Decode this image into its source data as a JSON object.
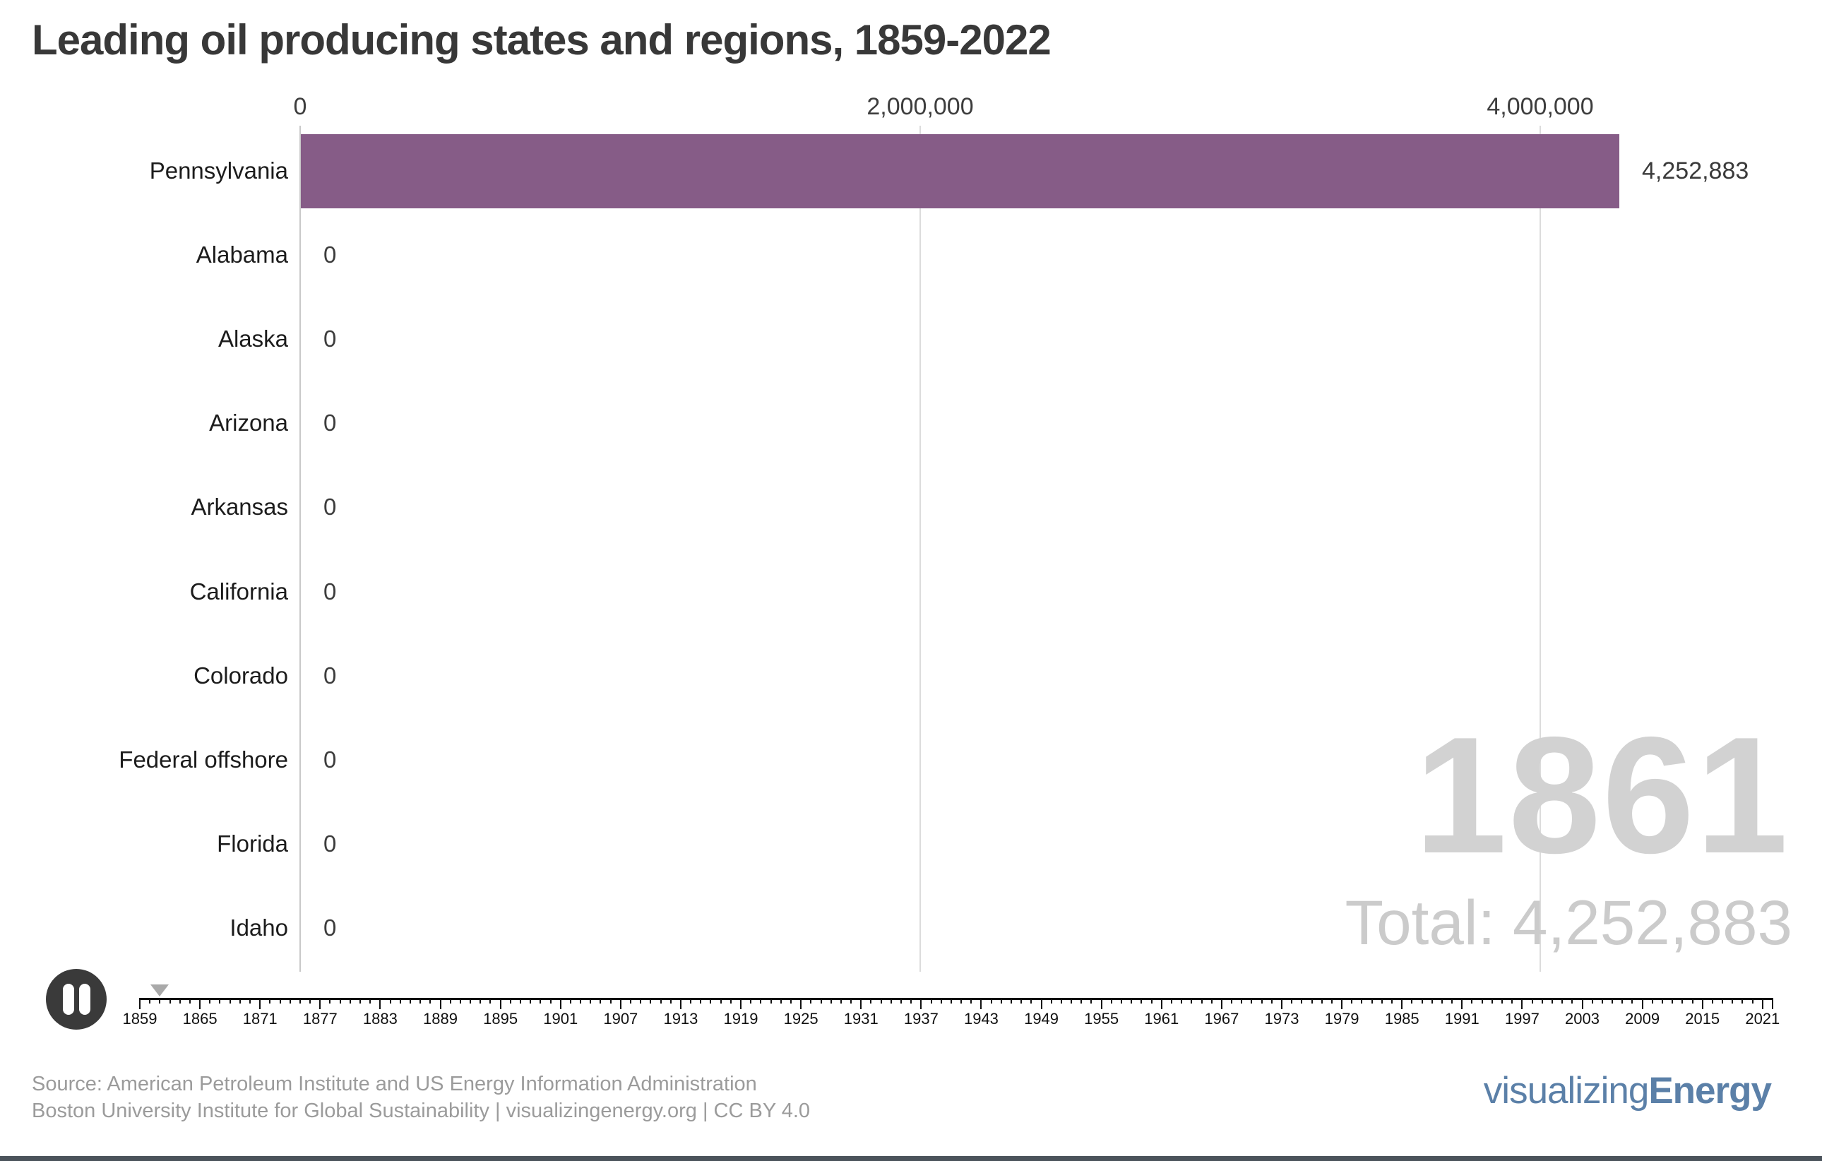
{
  "title": "Leading oil producing states and regions, 1859-2022",
  "colors": {
    "bar": "#865c87",
    "title_text": "#383838",
    "axis_line": "#c9c9c9",
    "grid_line": "#dcdcdc",
    "big_year_text": "#d2d2d2",
    "total_text": "#cbcbcb",
    "muted_text": "#9b9b9b",
    "logo_blue": "#5b80a8",
    "timeline_ink": "#111111",
    "marker_gray": "#a9a9a9",
    "pause_bg": "#3a3a3a",
    "bottom_bar": "#4b535b"
  },
  "x_axis": {
    "tick_labels": [
      "0",
      "2,000,000",
      "4,000,000"
    ],
    "tick_values": [
      0,
      2000000,
      4000000
    ]
  },
  "rows": [
    {
      "label": "Pennsylvania",
      "value": 4252883,
      "value_label": "4,252,883"
    },
    {
      "label": "Alabama",
      "value": 0,
      "value_label": "0"
    },
    {
      "label": "Alaska",
      "value": 0,
      "value_label": "0"
    },
    {
      "label": "Arizona",
      "value": 0,
      "value_label": "0"
    },
    {
      "label": "Arkansas",
      "value": 0,
      "value_label": "0"
    },
    {
      "label": "California",
      "value": 0,
      "value_label": "0"
    },
    {
      "label": "Colorado",
      "value": 0,
      "value_label": "0"
    },
    {
      "label": "Federal offshore",
      "value": 0,
      "value_label": "0"
    },
    {
      "label": "Florida",
      "value": 0,
      "value_label": "0"
    },
    {
      "label": "Idaho",
      "value": 0,
      "value_label": "0"
    }
  ],
  "overlay": {
    "year": "1861",
    "total": "Total: 4,252,883"
  },
  "player": {
    "state": "pause"
  },
  "timeline": {
    "start_year": 1859,
    "end_year": 2022,
    "label_interval": 6,
    "label_years": [
      1859,
      1865,
      1871,
      1877,
      1883,
      1889,
      1895,
      1901,
      1907,
      1913,
      1919,
      1925,
      1931,
      1937,
      1943,
      1949,
      1955,
      1961,
      1967,
      1973,
      1979,
      1985,
      1991,
      1997,
      2003,
      2009,
      2015,
      2021
    ],
    "current_year": 1861
  },
  "footer": {
    "source_line1": "Source: American Petroleum Institute and US Energy Information Administration",
    "source_line2": "Boston University Institute for Global Sustainability | visualizingenergy.org | CC BY 4.0",
    "logo_regular": "visualizing",
    "logo_bold": "Energy"
  },
  "chart_data": {
    "type": "bar",
    "orientation": "horizontal",
    "title": "Leading oil producing states and regions, 1859-2022",
    "categories": [
      "Pennsylvania",
      "Alabama",
      "Alaska",
      "Arizona",
      "Arkansas",
      "California",
      "Colorado",
      "Federal offshore",
      "Florida",
      "Idaho"
    ],
    "values": [
      4252883,
      0,
      0,
      0,
      0,
      0,
      0,
      0,
      0,
      0
    ],
    "value_labels": [
      "4,252,883",
      "0",
      "0",
      "0",
      "0",
      "0",
      "0",
      "0",
      "0",
      "0"
    ],
    "x_ticks": [
      0,
      2000000,
      4000000
    ],
    "xlim": [
      0,
      4800000
    ],
    "grid": true,
    "current_year": 1861,
    "total": 4252883,
    "timeline_years": [
      1859,
      2022
    ]
  }
}
